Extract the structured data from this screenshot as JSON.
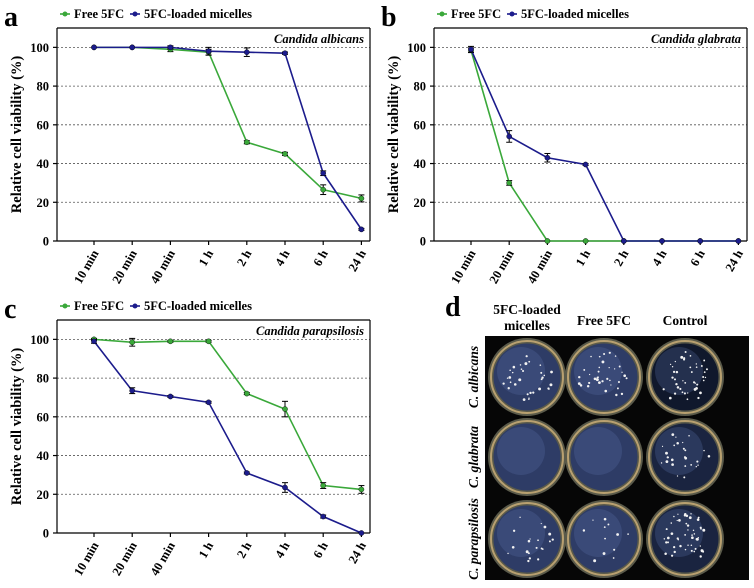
{
  "colors": {
    "free": "#3aa83a",
    "micelle": "#1c1c8c",
    "axis": "#000000",
    "grid": "#555555"
  },
  "chart_data": [
    {
      "panel_label": "a",
      "type": "line",
      "species": "Candida albicans",
      "ylabel": "Relative cell viability (%)",
      "ylim": [
        0,
        110
      ],
      "yticks": [
        0,
        20,
        40,
        60,
        80,
        100
      ],
      "categories": [
        "10 min",
        "20 min",
        "40 min",
        "1 h",
        "2 h",
        "4 h",
        "6 h",
        "24 h"
      ],
      "legend": [
        "Free 5FC",
        "5FC-loaded micelles"
      ],
      "series": [
        {
          "name": "Free 5FC",
          "values": [
            100,
            100,
            99,
            97.5,
            51,
            45,
            26.5,
            22
          ],
          "errors": [
            0,
            0,
            1.2,
            1.5,
            0.8,
            0.8,
            2.5,
            1.8
          ]
        },
        {
          "name": "5FC-loaded micelles",
          "values": [
            100,
            100,
            100,
            98,
            97.5,
            97,
            35,
            6
          ],
          "errors": [
            0,
            0,
            0.8,
            2,
            2.2,
            0.6,
            1.2,
            0.5
          ]
        }
      ]
    },
    {
      "panel_label": "b",
      "type": "line",
      "species": "Candida glabrata",
      "ylabel": "Relative cell viability (%)",
      "ylim": [
        0,
        110
      ],
      "yticks": [
        0,
        20,
        40,
        60,
        80,
        100
      ],
      "categories": [
        "10 min",
        "20 min",
        "40 min",
        "1 h",
        "2 h",
        "4 h",
        "6 h",
        "24 h"
      ],
      "legend": [
        "Free 5FC",
        "5FC-loaded micelles"
      ],
      "series": [
        {
          "name": "Free 5FC",
          "values": [
            98.5,
            30,
            0,
            0,
            0,
            0,
            0,
            0
          ],
          "errors": [
            1.2,
            1.2,
            0,
            0,
            0,
            0,
            0,
            0
          ]
        },
        {
          "name": "5FC-loaded micelles",
          "values": [
            99,
            54,
            43,
            39.5,
            0,
            0,
            0,
            0
          ],
          "errors": [
            1.5,
            3,
            2.2,
            0.5,
            0,
            0,
            0,
            0
          ]
        }
      ]
    },
    {
      "panel_label": "c",
      "type": "line",
      "species": "Candida parapsilosis",
      "ylabel": "Relative cell viability (%)",
      "ylim": [
        0,
        110
      ],
      "yticks": [
        0,
        20,
        40,
        60,
        80,
        100
      ],
      "categories": [
        "10 min",
        "20 min",
        "40 min",
        "1 h",
        "2 h",
        "4 h",
        "6 h",
        "24 h"
      ],
      "legend": [
        "Free 5FC",
        "5FC-loaded micelles"
      ],
      "series": [
        {
          "name": "Free 5FC",
          "values": [
            100,
            98.5,
            99,
            99,
            72,
            64,
            24.5,
            22.5
          ],
          "errors": [
            0.5,
            2,
            0.5,
            0.5,
            0.5,
            4,
            1.5,
            2
          ]
        },
        {
          "name": "5FC-loaded micelles",
          "values": [
            99,
            73.5,
            70.5,
            67.5,
            31,
            23.5,
            8.5,
            0
          ],
          "errors": [
            1,
            1.5,
            0.5,
            0.5,
            0.5,
            2.5,
            0.8,
            0
          ]
        }
      ]
    }
  ],
  "panel_d": {
    "label": "d",
    "columns": [
      "5FC-loaded micelles",
      "Free 5FC",
      "Control"
    ],
    "rows": [
      "C. albicans",
      "C. glabrata",
      "C. parapsilosis"
    ],
    "colony_density": [
      [
        0.55,
        0.6,
        0.7
      ],
      [
        0.0,
        0.0,
        0.45
      ],
      [
        0.35,
        0.2,
        0.85
      ]
    ]
  }
}
